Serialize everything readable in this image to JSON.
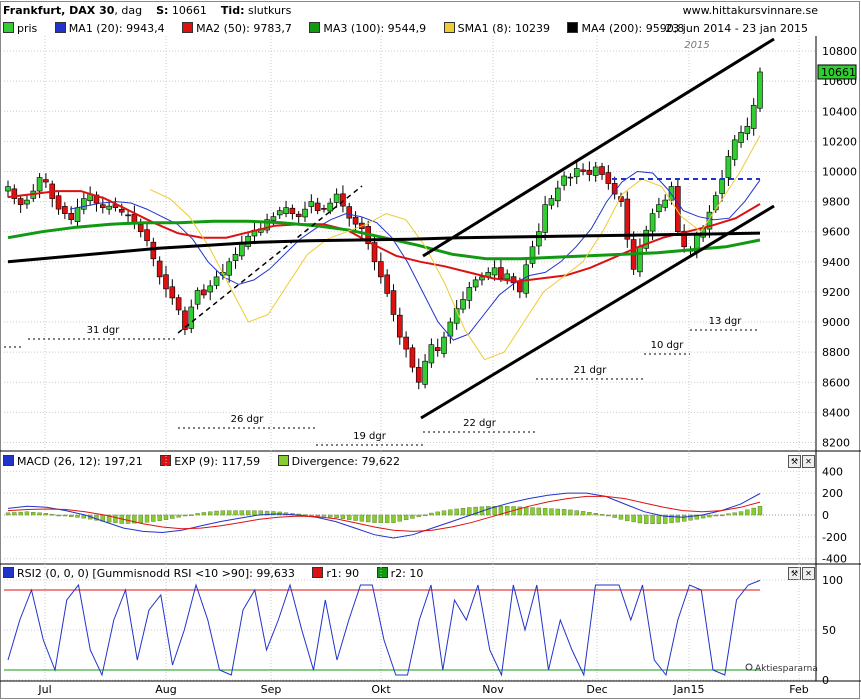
{
  "header": {
    "title": "Frankfurt, DAX 30",
    "period": "dag",
    "s_label": "S:",
    "s_value": "10661",
    "tid_label": "Tid:",
    "tid_value": "slutkurs",
    "site": "www.hittakursvinnare.se"
  },
  "legend_main": {
    "items": [
      {
        "label": "pris",
        "color": "#33cc33"
      },
      {
        "label": "MA1 (20): 9943,4",
        "color": "#2233cc"
      },
      {
        "label": "MA2 (50): 9783,7",
        "color": "#dd1111"
      },
      {
        "label": "MA3 (100): 9544,9",
        "color": "#119911"
      },
      {
        "label": "SMA1 (8): 10239",
        "color": "#eecc33"
      },
      {
        "label": "MA4 (200): 9590,8",
        "color": "#000000"
      }
    ],
    "date_range": "23 jun 2014 - 23 jan 2015"
  },
  "legend_macd": {
    "items": [
      {
        "label": "MACD (26, 12): 197,21",
        "color": "#2233cc"
      },
      {
        "label": "EXP (9): 117,59",
        "color": "#dd1111"
      },
      {
        "label": "Divergence: 79,622",
        "color": "#88cc33"
      }
    ]
  },
  "legend_rsi": {
    "items": [
      {
        "label": "RSI2 (0, 0, 0) [Gummisnodd RSI <10 >90]: 99,633",
        "color": "#2233cc"
      },
      {
        "label": "r1: 90",
        "color": "#dd1111"
      },
      {
        "label": "r2: 10",
        "color": "#119911"
      }
    ]
  },
  "colors": {
    "up": "#33cc33",
    "down": "#dd1111",
    "grid": "#cccccc"
  },
  "watermark": "Aktiespararna",
  "chart_data": [
    {
      "type": "candlestick",
      "title": "Frankfurt, DAX 30",
      "current_price": 10661,
      "current_price_label": "10661",
      "year_marker": "2015",
      "x_tick_labels": [
        "Jul",
        "Aug",
        "Sep",
        "Okt",
        "Nov",
        "Dec",
        "Jan15",
        "Feb"
      ],
      "y_ticks": [
        8200,
        8400,
        8600,
        8800,
        9000,
        9200,
        9400,
        9600,
        9800,
        10000,
        10200,
        10400,
        10600,
        10800
      ],
      "y_tick_labels": [
        "8200",
        "8400",
        "8600",
        "8800",
        "9000",
        "9200",
        "9400",
        "9600",
        "9800",
        "10000",
        "10200",
        "10400",
        "10600",
        "10800"
      ],
      "ylim": [
        8150,
        10900
      ],
      "dashed_line_level": 9950,
      "annotations": [
        "31 dgr",
        "26 dgr",
        "19 dgr",
        "22 dgr",
        "21 dgr",
        "10 dgr",
        "13 dgr"
      ],
      "closing_prices_approx": [
        9900,
        9820,
        9780,
        9810,
        9870,
        9960,
        9930,
        9820,
        9750,
        9720,
        9680,
        9760,
        9820,
        9850,
        9790,
        9760,
        9770,
        9760,
        9730,
        9710,
        9650,
        9600,
        9540,
        9420,
        9300,
        9220,
        9160,
        9080,
        8950,
        9100,
        9210,
        9180,
        9240,
        9300,
        9330,
        9400,
        9450,
        9520,
        9570,
        9610,
        9620,
        9680,
        9700,
        9740,
        9760,
        9720,
        9700,
        9750,
        9800,
        9740,
        9750,
        9790,
        9850,
        9770,
        9690,
        9650,
        9620,
        9520,
        9400,
        9300,
        9190,
        9050,
        8900,
        8820,
        8700,
        8600,
        8740,
        8850,
        8810,
        8900,
        9000,
        9090,
        9150,
        9230,
        9280,
        9300,
        9330,
        9360,
        9290,
        9320,
        9260,
        9200,
        9380,
        9500,
        9600,
        9780,
        9820,
        9890,
        9970,
        9960,
        10020,
        10000,
        9980,
        10030,
        9980,
        9920,
        9850,
        9800,
        9550,
        9350,
        9500,
        9610,
        9720,
        9780,
        9810,
        9900,
        9600,
        9500,
        9470,
        9580,
        9620,
        9730,
        9840,
        9950,
        10100,
        10210,
        10260,
        10300,
        10440,
        10661
      ],
      "ma_series_approx": {
        "MA1 (20)": [
          9750,
          9770,
          9790,
          9800,
          9790,
          9750,
          9700,
          9650,
          9550,
          9400,
          9300,
          9250,
          9280,
          9350,
          9450,
          9550,
          9620,
          9680,
          9720,
          9700,
          9660,
          9560,
          9400,
          9200,
          9000,
          8880,
          8920,
          9050,
          9180,
          9260,
          9310,
          9330,
          9400,
          9500,
          9620,
          9800,
          9930,
          10000,
          9990,
          9880,
          9740,
          9700,
          9680,
          9690,
          9800,
          9943
        ],
        "MA2 (50)": [
          9830,
          9850,
          9870,
          9870,
          9820,
          9740,
          9660,
          9590,
          9560,
          9560,
          9600,
          9640,
          9650,
          9650,
          9610,
          9520,
          9440,
          9400,
          9370,
          9330,
          9290,
          9270,
          9290,
          9310,
          9360,
          9430,
          9500,
          9560,
          9600,
          9640,
          9690,
          9784
        ],
        "MA3 (100)": [
          9560,
          9600,
          9630,
          9650,
          9660,
          9660,
          9670,
          9670,
          9660,
          9640,
          9610,
          9560,
          9510,
          9450,
          9420,
          9420,
          9430,
          9440,
          9450,
          9460,
          9480,
          9500,
          9545
        ],
        "SMA1 (8)": [
          9880,
          9820,
          9700,
          9500,
          9250,
          9000,
          9050,
          9250,
          9450,
          9550,
          9600,
          9650,
          9720,
          9680,
          9500,
          9250,
          8950,
          8750,
          8800,
          9000,
          9200,
          9300,
          9400,
          9600,
          9850,
          9950,
          9900,
          9700,
          9600,
          9800,
          10000,
          10239
        ],
        "MA4 (200)": [
          9400,
          9430,
          9460,
          9490,
          9510,
          9530,
          9540,
          9545,
          9550,
          9560,
          9565,
          9570,
          9575,
          9580,
          9585,
          9591
        ]
      }
    },
    {
      "type": "line",
      "title": "MACD (26, 12)",
      "y_ticks": [
        -400,
        -200,
        0,
        200,
        400
      ],
      "y_tick_labels": [
        "-400",
        "-200",
        "0",
        "200",
        "400"
      ],
      "ylim": [
        -430,
        430
      ],
      "series": [
        {
          "name": "MACD (26, 12): 197,21",
          "values": [
            60,
            80,
            70,
            40,
            0,
            -60,
            -120,
            -150,
            -160,
            -140,
            -100,
            -60,
            -30,
            0,
            10,
            0,
            -20,
            -60,
            -120,
            -180,
            -210,
            -180,
            -120,
            -60,
            0,
            60,
            110,
            150,
            180,
            200,
            200,
            170,
            100,
            30,
            -10,
            -20,
            0,
            40,
            100,
            197
          ]
        },
        {
          "name": "EXP (9): 117,59",
          "values": [
            40,
            50,
            55,
            50,
            30,
            0,
            -40,
            -80,
            -110,
            -125,
            -120,
            -100,
            -70,
            -40,
            -20,
            -10,
            -15,
            -35,
            -70,
            -110,
            -140,
            -150,
            -140,
            -110,
            -70,
            -20,
            30,
            80,
            120,
            150,
            170,
            170,
            150,
            110,
            70,
            40,
            30,
            40,
            70,
            118
          ]
        },
        {
          "name": "Divergence: 79,622",
          "values": [
            20,
            30,
            15,
            -10,
            -30,
            -60,
            -80,
            -70,
            -50,
            -15,
            20,
            40,
            40,
            40,
            30,
            10,
            -5,
            -25,
            -50,
            -70,
            -70,
            -30,
            20,
            50,
            70,
            80,
            80,
            70,
            60,
            50,
            30,
            0,
            -50,
            -80,
            -80,
            -60,
            -30,
            0,
            30,
            80
          ]
        }
      ]
    },
    {
      "type": "line",
      "title": "RSI2",
      "y_ticks": [
        0,
        50,
        100
      ],
      "y_tick_labels": [
        "0",
        "50",
        "100"
      ],
      "ylim": [
        0,
        100
      ],
      "series": [
        {
          "name": "RSI2 (0, 0, 0) [Gummisnodd RSI <10 >90]: 99,633",
          "values": [
            20,
            60,
            90,
            40,
            10,
            80,
            95,
            30,
            5,
            60,
            90,
            20,
            70,
            85,
            15,
            50,
            95,
            60,
            10,
            5,
            70,
            90,
            30,
            60,
            95,
            50,
            10,
            80,
            20,
            60,
            95,
            95,
            40,
            5,
            5,
            60,
            95,
            10,
            80,
            60,
            95,
            30,
            5,
            95,
            50,
            95,
            10,
            60,
            30,
            5,
            95,
            95,
            95,
            60,
            95,
            20,
            5,
            60,
            95,
            90,
            10,
            5,
            80,
            95,
            99.6
          ]
        },
        {
          "name": "r1: 90",
          "values": [
            90
          ]
        },
        {
          "name": "r2: 10",
          "values": [
            10
          ]
        }
      ]
    }
  ]
}
